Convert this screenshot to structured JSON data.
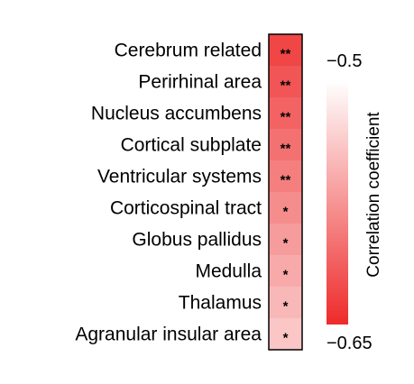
{
  "chart_data": {
    "type": "heatmap",
    "rows": [
      {
        "label": "Cerebrum related",
        "value": -0.63,
        "significance": "**"
      },
      {
        "label": "Perirhinal area",
        "value": -0.62,
        "significance": "**"
      },
      {
        "label": "Nucleus accumbens",
        "value": -0.61,
        "significance": "**"
      },
      {
        "label": "Cortical subplate",
        "value": -0.6,
        "significance": "**"
      },
      {
        "label": "Ventricular systems",
        "value": -0.59,
        "significance": "**"
      },
      {
        "label": "Corticospinal tract",
        "value": -0.58,
        "significance": "*"
      },
      {
        "label": "Globus pallidus",
        "value": -0.57,
        "significance": "*"
      },
      {
        "label": "Medulla",
        "value": -0.56,
        "significance": "*"
      },
      {
        "label": "Thalamus",
        "value": -0.55,
        "significance": "*"
      },
      {
        "label": "Agranular insular area",
        "value": -0.54,
        "significance": "*"
      }
    ],
    "colorbar": {
      "title": "Correlation coefficient",
      "min": -0.65,
      "max": -0.5,
      "min_label": "−0.65",
      "max_label": "−0.5",
      "color_min": "#ee2a2a",
      "color_max": "#ffffff"
    }
  }
}
